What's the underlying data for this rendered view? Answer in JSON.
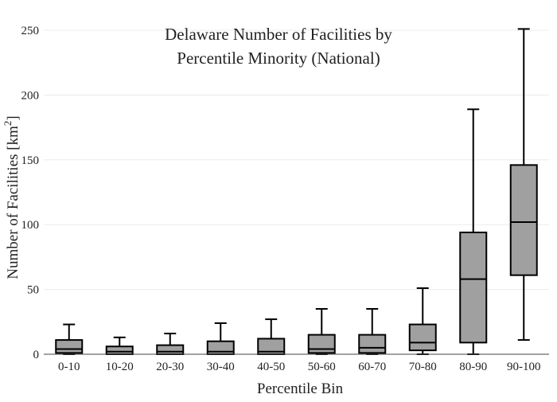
{
  "chart_data": {
    "type": "box",
    "title_lines": [
      "Delaware Number of Facilities by",
      "Percentile Minority (National)"
    ],
    "xlabel": "Percentile Bin",
    "ylabel_main": "Number of Facilities  [km",
    "ylabel_sup": "2",
    "ylabel_end": "]",
    "ylim": [
      0,
      250
    ],
    "yticks": [
      0,
      50,
      100,
      150,
      200,
      250
    ],
    "ytick_labels": [
      "0",
      "50",
      "100",
      "150",
      "200",
      "250"
    ],
    "grid": true,
    "categories": [
      "0-10",
      "10-20",
      "20-30",
      "30-40",
      "40-50",
      "50-60",
      "60-70",
      "70-80",
      "80-90",
      "90-100"
    ],
    "boxes": [
      {
        "category": "0-10",
        "min": 0,
        "q1": 1,
        "median": 4,
        "q3": 11,
        "max": 23
      },
      {
        "category": "10-20",
        "min": 0,
        "q1": 0,
        "median": 2,
        "q3": 6,
        "max": 13
      },
      {
        "category": "20-30",
        "min": 0,
        "q1": 0,
        "median": 2,
        "q3": 7,
        "max": 16
      },
      {
        "category": "30-40",
        "min": 0,
        "q1": 0,
        "median": 2,
        "q3": 10,
        "max": 24
      },
      {
        "category": "40-50",
        "min": 0,
        "q1": 0,
        "median": 2,
        "q3": 12,
        "max": 27
      },
      {
        "category": "50-60",
        "min": 0,
        "q1": 1,
        "median": 4,
        "q3": 15,
        "max": 35
      },
      {
        "category": "60-70",
        "min": 0,
        "q1": 1,
        "median": 5,
        "q3": 15,
        "max": 35
      },
      {
        "category": "70-80",
        "min": 0,
        "q1": 3,
        "median": 9,
        "q3": 23,
        "max": 51
      },
      {
        "category": "80-90",
        "min": 0,
        "q1": 9,
        "median": 58,
        "q3": 94,
        "max": 189
      },
      {
        "category": "90-100",
        "min": 11,
        "q1": 61,
        "median": 102,
        "q3": 146,
        "max": 251
      }
    ],
    "colors": {
      "box_fill": "#a0a0a0",
      "box_stroke": "#000000",
      "grid": "#ececec",
      "axis": "#444444"
    }
  }
}
